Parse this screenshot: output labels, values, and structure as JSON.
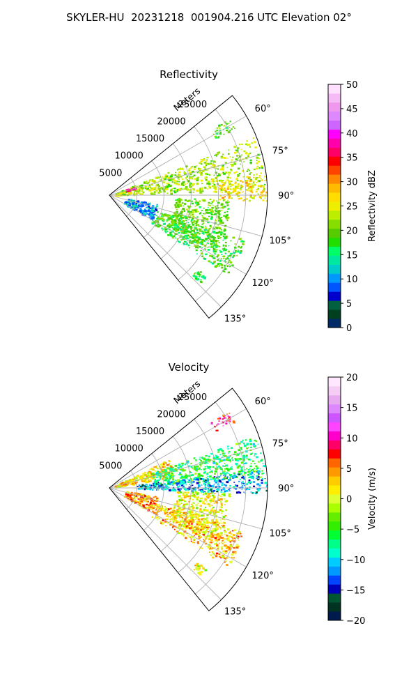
{
  "title": "SKYLER-HU  20231218  001904.216 UTC Elevation 02°",
  "chart_data": [
    {
      "type": "heatmap",
      "projection": "polar-sector",
      "title": "Reflectivity",
      "radial_label": "Meters",
      "radial_ticks": [
        5000,
        10000,
        15000,
        20000,
        25000
      ],
      "radial_tick_labels": [
        "5000",
        "10000",
        "15000",
        "20000",
        "25000"
      ],
      "radial_range": [
        0,
        29000
      ],
      "azimuth_range_deg": [
        51,
        141
      ],
      "azimuth_ticks_deg": [
        60,
        75,
        90,
        105,
        120,
        135
      ],
      "azimuth_tick_labels": [
        "60°",
        "75°",
        "90°",
        "105°",
        "120°",
        "135°"
      ],
      "grid": true,
      "colorbar": {
        "label": "Reflectivity dBZ",
        "range": [
          0,
          50
        ],
        "ticks": [
          0,
          5,
          10,
          15,
          20,
          25,
          30,
          35,
          40,
          45,
          50
        ],
        "tick_labels": [
          "0",
          "5",
          "10",
          "15",
          "20",
          "25",
          "30",
          "35",
          "40",
          "45",
          "50"
        ]
      },
      "features": [
        {
          "name": "northeast band",
          "az": [
            68,
            88
          ],
          "r": [
            1000,
            28500
          ],
          "value": 22
        },
        {
          "name": "east cluster",
          "az": [
            82,
            92
          ],
          "r": [
            20000,
            29000
          ],
          "value": 26
        },
        {
          "name": "core near radar",
          "az": [
            70,
            76
          ],
          "r": [
            3000,
            5000
          ],
          "value": 36
        },
        {
          "name": "north-south line",
          "az": [
            92,
            118
          ],
          "r": [
            12000,
            22000
          ],
          "value": 20
        },
        {
          "name": "southeast band",
          "az": [
            108,
            124
          ],
          "r": [
            9000,
            26000
          ],
          "value": 18
        },
        {
          "name": "south-southeast echoes",
          "az": [
            100,
            120
          ],
          "r": [
            3000,
            9000
          ],
          "value": 10
        },
        {
          "name": "far south echo",
          "az": [
            130,
            134
          ],
          "r": [
            21000,
            23000
          ],
          "value": 17
        },
        {
          "name": "north echo",
          "az": [
            57,
            62
          ],
          "r": [
            22000,
            26000
          ],
          "value": 19
        }
      ]
    },
    {
      "type": "heatmap",
      "projection": "polar-sector",
      "title": "Velocity",
      "radial_label": "Meters",
      "radial_ticks": [
        5000,
        10000,
        15000,
        20000,
        25000
      ],
      "radial_tick_labels": [
        "5000",
        "10000",
        "15000",
        "20000",
        "25000"
      ],
      "radial_range": [
        0,
        29000
      ],
      "azimuth_range_deg": [
        51,
        141
      ],
      "azimuth_ticks_deg": [
        60,
        75,
        90,
        105,
        120,
        135
      ],
      "azimuth_tick_labels": [
        "60°",
        "75°",
        "90°",
        "105°",
        "120°",
        "135°"
      ],
      "grid": true,
      "colorbar": {
        "label": "Velocity (m/s)",
        "range": [
          -20,
          20
        ],
        "ticks": [
          -20,
          -15,
          -10,
          -5,
          0,
          5,
          10,
          15,
          20
        ],
        "tick_labels": [
          "−20",
          "−15",
          "−10",
          "−5",
          "0",
          "5",
          "10",
          "15",
          "20"
        ]
      },
      "features": [
        {
          "name": "near-radar inbound wedge",
          "az": [
            64,
            80
          ],
          "r": [
            1000,
            12000
          ],
          "value": 2
        },
        {
          "name": "northeast band",
          "az": [
            70,
            86
          ],
          "r": [
            8000,
            28500
          ],
          "value": -6
        },
        {
          "name": "east inbound region",
          "az": [
            83,
            92
          ],
          "r": [
            5000,
            29000
          ],
          "value": -12
        },
        {
          "name": "north-south line",
          "az": [
            92,
            118
          ],
          "r": [
            12000,
            22000
          ],
          "value": 1
        },
        {
          "name": "southeast band",
          "az": [
            108,
            124
          ],
          "r": [
            9000,
            26000
          ],
          "value": 3
        },
        {
          "name": "south-southeast echoes",
          "az": [
            100,
            120
          ],
          "r": [
            3000,
            9000
          ],
          "value": 4
        },
        {
          "name": "north echo",
          "az": [
            57,
            62
          ],
          "r": [
            22000,
            26000
          ],
          "value": 9
        },
        {
          "name": "far south echo",
          "az": [
            130,
            134
          ],
          "r": [
            21000,
            23000
          ],
          "value": 0
        }
      ]
    }
  ]
}
